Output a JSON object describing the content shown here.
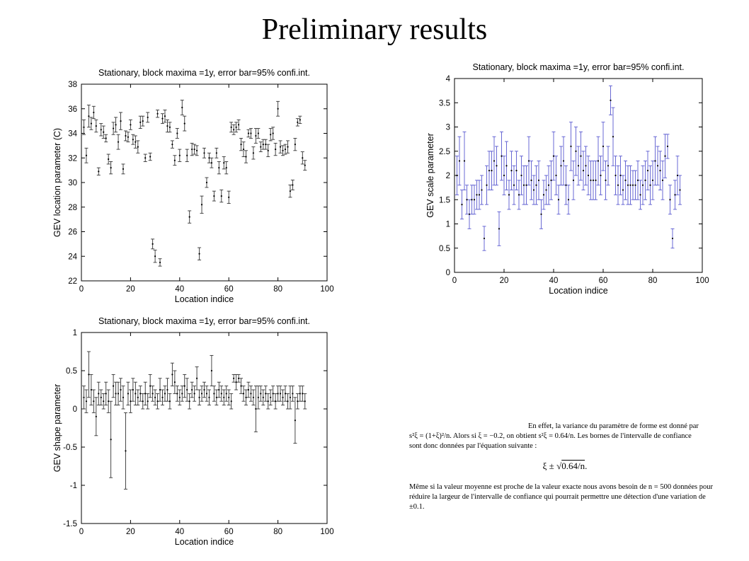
{
  "slide_title": "Preliminary results",
  "note": {
    "para1_line1": "En effet, la variance du paramètre de forme est donné par",
    "para1_line2": "s²ξ = (1+ξ)²/n. Alors si ξ = −0.2, on obtient s²ξ = 0.64/n. Les bornes de l'intervalle de confiance",
    "para1_line3": "sont donc données par l'équation suivante :",
    "formula_prefix": "ξ ± √",
    "formula_radicand": "0.64/n",
    "formula_suffix": ".",
    "para2": "Même si la valeur moyenne est proche de la valeur exacte nous avons besoin de n = 500 données pour réduire la largeur de l'intervalle de confiance qui pourrait permettre une détection d'une variation de ±0.1."
  },
  "chart_data": [
    {
      "type": "scatter",
      "title": "Stationary, block maxima =1y, error bar=95% confi.int.",
      "xlabel": "Location indice",
      "ylabel": "GEV location parameter (C)",
      "xlim": [
        0,
        100
      ],
      "ylim": [
        22,
        38
      ],
      "xticks": [
        0,
        20,
        40,
        60,
        80,
        100
      ],
      "yticks": [
        22,
        24,
        26,
        28,
        30,
        32,
        34,
        36,
        38
      ],
      "color": "#333333",
      "grid": false,
      "series": [
        {
          "x": [
            1,
            2,
            3,
            4,
            5,
            6,
            7,
            8,
            9,
            10,
            11,
            12,
            13,
            14,
            15,
            16,
            17,
            18,
            19,
            20,
            21,
            22,
            23,
            24,
            25,
            26,
            27,
            28,
            29,
            30,
            31,
            32,
            33,
            34,
            35,
            36,
            37,
            38,
            39,
            40,
            41,
            42,
            43,
            44,
            45,
            46,
            47,
            48,
            49,
            50,
            51,
            52,
            53,
            54,
            55,
            56,
            57,
            58,
            59,
            60,
            61,
            62,
            63,
            64,
            65,
            66,
            67,
            68,
            69,
            70,
            71,
            72,
            73,
            74,
            75,
            76,
            77,
            78,
            79,
            80,
            81,
            82,
            83,
            84,
            85,
            86,
            87,
            88,
            89,
            90,
            91
          ],
          "y": [
            34.5,
            32.2,
            35.4,
            34.8,
            35.7,
            34.6,
            30.9,
            34.3,
            34.1,
            33.6,
            31.9,
            31.2,
            34.4,
            34.7,
            33.3,
            35.0,
            31.1,
            33.8,
            33.7,
            34.7,
            33.5,
            33.3,
            32.9,
            34.9,
            35.0,
            32.0,
            35.3,
            32.1,
            25.0,
            24.0,
            35.6,
            23.5,
            35.2,
            35.4,
            34.6,
            34.5,
            33.1,
            31.8,
            34.0,
            32.2,
            36.1,
            34.8,
            32.2,
            27.2,
            32.7,
            32.7,
            32.6,
            24.2,
            28.2,
            32.4,
            30.0,
            32.0,
            31.6,
            28.9,
            32.4,
            31.2,
            28.9,
            31.6,
            31.2,
            28.8,
            34.5,
            34.3,
            34.5,
            34.7,
            33.1,
            32.7,
            32.1,
            34.0,
            34.0,
            32.4,
            33.8,
            34.0,
            32.9,
            33.1,
            33.1,
            32.6,
            33.9,
            34.0,
            32.7,
            36.0,
            32.9,
            32.6,
            32.7,
            32.9,
            29.3,
            29.8,
            33.1,
            34.9,
            35.1,
            32.0,
            31.4
          ],
          "err": [
            0.6,
            0.6,
            0.9,
            0.5,
            0.5,
            0.5,
            0.3,
            0.5,
            0.5,
            0.3,
            0.4,
            0.5,
            0.5,
            0.6,
            0.6,
            0.7,
            0.4,
            0.4,
            0.4,
            0.4,
            0.4,
            0.5,
            0.5,
            0.5,
            0.4,
            0.3,
            0.4,
            0.3,
            0.4,
            0.5,
            0.3,
            0.3,
            0.4,
            0.5,
            0.5,
            0.4,
            0.3,
            0.4,
            0.4,
            0.5,
            0.6,
            0.6,
            0.5,
            0.5,
            0.5,
            0.4,
            0.4,
            0.5,
            0.7,
            0.4,
            0.4,
            0.4,
            0.4,
            0.4,
            0.4,
            0.5,
            0.5,
            0.5,
            0.5,
            0.5,
            0.4,
            0.4,
            0.4,
            0.4,
            0.5,
            0.6,
            0.5,
            0.3,
            0.4,
            0.5,
            0.6,
            0.4,
            0.4,
            0.4,
            0.4,
            0.5,
            0.5,
            0.5,
            0.5,
            0.6,
            0.5,
            0.4,
            0.4,
            0.5,
            0.5,
            0.4,
            0.5,
            0.3,
            0.3,
            0.5,
            0.4
          ]
        }
      ]
    },
    {
      "type": "scatter",
      "title": "Stationary, block maxima =1y, error bar=95% confi.int.",
      "xlabel": "Location indice",
      "ylabel": "GEV scale parameter",
      "xlim": [
        0,
        100
      ],
      "ylim": [
        0,
        4
      ],
      "xticks": [
        0,
        20,
        40,
        60,
        80,
        100
      ],
      "yticks": [
        0,
        0.5,
        1,
        1.5,
        2,
        2.5,
        3,
        3.5,
        4
      ],
      "color": "#5a5ad0",
      "grid": false,
      "series": [
        {
          "x": [
            1,
            2,
            3,
            4,
            5,
            6,
            7,
            8,
            9,
            10,
            11,
            12,
            13,
            14,
            15,
            16,
            17,
            18,
            19,
            20,
            21,
            22,
            23,
            24,
            25,
            26,
            27,
            28,
            29,
            30,
            31,
            32,
            33,
            34,
            35,
            36,
            37,
            38,
            39,
            40,
            41,
            42,
            43,
            44,
            45,
            46,
            47,
            48,
            49,
            50,
            51,
            52,
            53,
            54,
            55,
            56,
            57,
            58,
            59,
            60,
            61,
            62,
            63,
            64,
            65,
            66,
            67,
            68,
            69,
            70,
            71,
            72,
            73,
            74,
            75,
            76,
            77,
            78,
            79,
            80,
            81,
            82,
            83,
            84,
            85,
            86,
            87,
            88,
            89,
            90,
            91
          ],
          "y": [
            2.0,
            2.3,
            1.4,
            2.3,
            1.5,
            1.2,
            1.5,
            1.5,
            1.6,
            1.6,
            1.7,
            0.7,
            1.8,
            2.1,
            2.1,
            2.3,
            2.2,
            0.9,
            2.4,
            2.0,
            2.2,
            1.6,
            2.1,
            1.8,
            2.1,
            1.6,
            2.0,
            1.8,
            1.8,
            2.3,
            1.9,
            1.7,
            1.8,
            1.9,
            1.2,
            1.6,
            1.7,
            1.8,
            1.9,
            2.4,
            2.0,
            1.5,
            2.2,
            2.3,
            1.8,
            1.5,
            2.6,
            1.9,
            2.5,
            2.2,
            2.4,
            2.1,
            2.2,
            2.0,
            1.9,
            1.9,
            1.9,
            2.3,
            2.0,
            2.6,
            1.9,
            2.2,
            3.55,
            2.8,
            2.0,
            1.8,
            2.0,
            1.7,
            1.9,
            1.8,
            1.8,
            1.8,
            1.8,
            1.9,
            1.6,
            1.8,
            1.9,
            2.1,
            1.8,
            1.9,
            2.3,
            2.2,
            2.1,
            1.9,
            2.4,
            2.6,
            1.5,
            0.7,
            1.6,
            2.0,
            1.7
          ],
          "err": [
            0.4,
            0.5,
            0.3,
            0.6,
            0.3,
            0.3,
            0.3,
            0.3,
            0.3,
            0.3,
            0.3,
            0.25,
            0.4,
            0.4,
            0.4,
            0.5,
            0.4,
            0.35,
            0.5,
            0.4,
            0.5,
            0.3,
            0.4,
            0.4,
            0.4,
            0.3,
            0.4,
            0.4,
            0.4,
            0.5,
            0.4,
            0.3,
            0.4,
            0.4,
            0.3,
            0.3,
            0.3,
            0.4,
            0.4,
            0.5,
            0.4,
            0.3,
            0.4,
            0.5,
            0.4,
            0.3,
            0.5,
            0.4,
            0.5,
            0.4,
            0.5,
            0.4,
            0.4,
            0.4,
            0.4,
            0.4,
            0.4,
            0.5,
            0.4,
            0.5,
            0.4,
            0.4,
            0.3,
            0.6,
            0.4,
            0.4,
            0.4,
            0.3,
            0.4,
            0.4,
            0.4,
            0.3,
            0.3,
            0.4,
            0.3,
            0.4,
            0.4,
            0.4,
            0.4,
            0.4,
            0.5,
            0.4,
            0.4,
            0.4,
            0.45,
            0.25,
            0.3,
            0.2,
            0.3,
            0.4,
            0.3
          ]
        }
      ]
    },
    {
      "type": "scatter",
      "title": "Stationary, block maxima =1y, error bar=95% confi.int.",
      "xlabel": "Location indice",
      "ylabel": "GEV shape parameter",
      "xlim": [
        0,
        100
      ],
      "ylim": [
        -1.5,
        1
      ],
      "xticks": [
        0,
        20,
        40,
        60,
        80,
        100
      ],
      "yticks": [
        -1.5,
        -1,
        -0.5,
        0,
        0.5,
        1
      ],
      "color": "#333333",
      "grid": false,
      "series": [
        {
          "x": [
            1,
            2,
            3,
            4,
            5,
            6,
            7,
            8,
            9,
            10,
            11,
            12,
            13,
            14,
            15,
            16,
            17,
            18,
            19,
            20,
            21,
            22,
            23,
            24,
            25,
            26,
            27,
            28,
            29,
            30,
            31,
            32,
            33,
            34,
            35,
            36,
            37,
            38,
            39,
            40,
            41,
            42,
            43,
            44,
            45,
            46,
            47,
            48,
            49,
            50,
            51,
            52,
            53,
            54,
            55,
            56,
            57,
            58,
            59,
            60,
            61,
            62,
            63,
            64,
            65,
            66,
            67,
            68,
            69,
            70,
            71,
            72,
            73,
            74,
            75,
            76,
            77,
            78,
            79,
            80,
            81,
            82,
            83,
            84,
            85,
            86,
            87,
            88,
            89,
            90,
            91
          ],
          "y": [
            0.15,
            0.1,
            0.45,
            0.25,
            0.1,
            -0.1,
            0.2,
            0.15,
            0.1,
            0.2,
            0.1,
            -0.4,
            0.3,
            0.2,
            0.2,
            0.25,
            0.15,
            -0.55,
            0.2,
            0.1,
            0.25,
            0.2,
            0.15,
            0.2,
            0.1,
            0.2,
            0.1,
            0.3,
            0.2,
            0.15,
            0.1,
            0.25,
            0.15,
            0.2,
            0.25,
            0.1,
            0.45,
            0.35,
            0.2,
            0.15,
            0.2,
            0.3,
            0.25,
            0.1,
            0.25,
            0.2,
            0.4,
            0.15,
            0.2,
            0.25,
            0.2,
            0.15,
            0.5,
            0.2,
            0.15,
            0.25,
            0.2,
            0.15,
            0.2,
            0.15,
            0.1,
            0.4,
            0.35,
            0.4,
            0.3,
            0.2,
            0.15,
            0.25,
            0.2,
            0.15,
            0.0,
            0.15,
            0.2,
            0.15,
            0.2,
            0.1,
            0.15,
            0.2,
            0.1,
            0.2,
            0.2,
            0.15,
            0.2,
            0.1,
            0.15,
            0.2,
            -0.15,
            0.1,
            0.2,
            0.2,
            0.1
          ],
          "err": [
            0.15,
            0.15,
            0.3,
            0.2,
            0.15,
            0.25,
            0.15,
            0.1,
            0.1,
            0.15,
            0.15,
            0.5,
            0.15,
            0.15,
            0.15,
            0.15,
            0.15,
            0.5,
            0.15,
            0.15,
            0.15,
            0.15,
            0.1,
            0.1,
            0.1,
            0.15,
            0.1,
            0.15,
            0.1,
            0.1,
            0.1,
            0.15,
            0.1,
            0.1,
            0.15,
            0.1,
            0.15,
            0.15,
            0.1,
            0.1,
            0.1,
            0.15,
            0.15,
            0.1,
            0.1,
            0.1,
            0.15,
            0.1,
            0.1,
            0.1,
            0.1,
            0.1,
            0.2,
            0.1,
            0.1,
            0.1,
            0.1,
            0.1,
            0.1,
            0.1,
            0.1,
            0.05,
            0.1,
            0.05,
            0.1,
            0.1,
            0.1,
            0.1,
            0.1,
            0.1,
            0.3,
            0.15,
            0.1,
            0.1,
            0.1,
            0.1,
            0.1,
            0.1,
            0.1,
            0.1,
            0.1,
            0.1,
            0.1,
            0.1,
            0.15,
            0.1,
            0.3,
            0.1,
            0.1,
            0.1,
            0.1
          ]
        }
      ]
    }
  ]
}
